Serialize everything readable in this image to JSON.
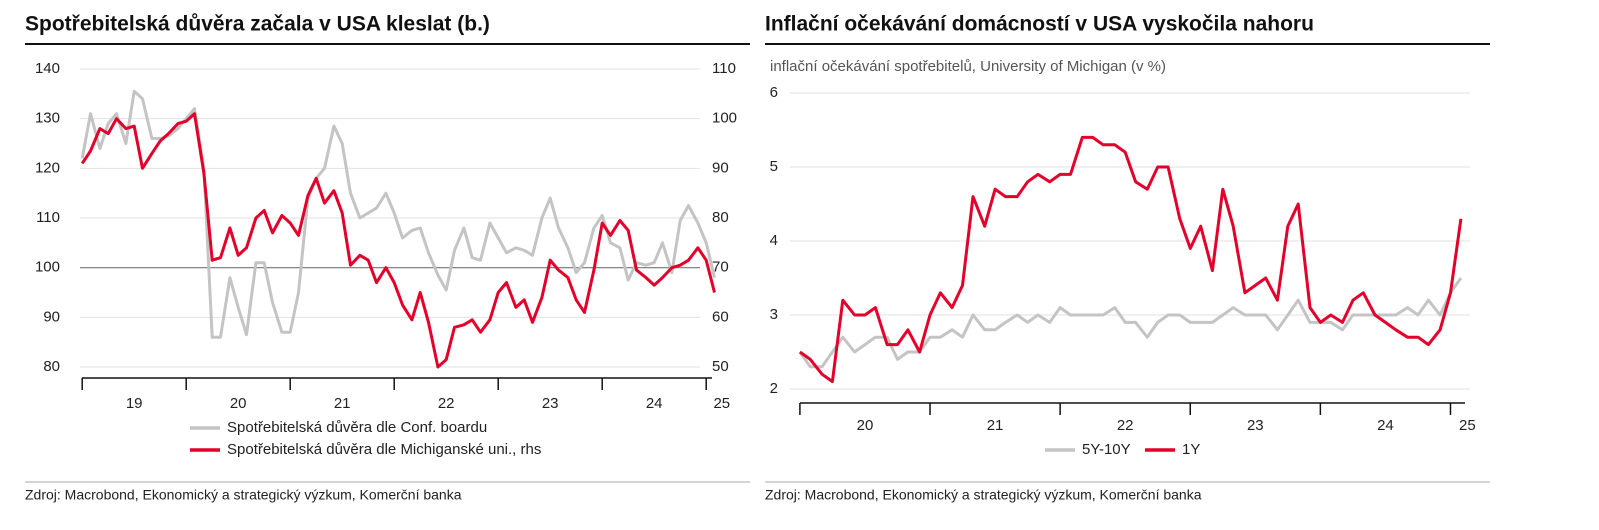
{
  "chart_data": [
    {
      "type": "line",
      "title": "Spotřebitelská důvěra začala v USA kleslat (b.)",
      "source": "Zdroj: Macrobond, Ekonomický a strategický výzkum, Komerční banka",
      "x": [
        2019.0,
        2019.08,
        2019.17,
        2019.25,
        2019.33,
        2019.42,
        2019.5,
        2019.58,
        2019.67,
        2019.75,
        2019.83,
        2019.92,
        2020.0,
        2020.08,
        2020.17,
        2020.25,
        2020.33,
        2020.42,
        2020.5,
        2020.58,
        2020.67,
        2020.75,
        2020.83,
        2020.92,
        2021.0,
        2021.08,
        2021.17,
        2021.25,
        2021.33,
        2021.42,
        2021.5,
        2021.58,
        2021.67,
        2021.75,
        2021.83,
        2021.92,
        2022.0,
        2022.08,
        2022.17,
        2022.25,
        2022.33,
        2022.42,
        2022.5,
        2022.58,
        2022.67,
        2022.75,
        2022.83,
        2022.92,
        2023.0,
        2023.08,
        2023.17,
        2023.25,
        2023.33,
        2023.42,
        2023.5,
        2023.58,
        2023.67,
        2023.75,
        2023.83,
        2023.92,
        2024.0,
        2024.08,
        2024.17,
        2024.25,
        2024.33,
        2024.42,
        2024.5,
        2024.58,
        2024.67,
        2024.75,
        2024.83,
        2024.92,
        2025.0,
        2025.08
      ],
      "series": [
        {
          "name": "Spotřebitelská důvěra dle Conf. boardu",
          "color": "#c4c4c4",
          "axis": "y",
          "values": [
            122,
            131,
            124,
            129,
            131,
            125,
            135.5,
            134,
            126,
            126,
            126.5,
            128,
            130,
            132,
            120,
            86,
            86,
            98,
            92,
            86.5,
            101,
            101,
            93,
            87,
            87,
            95,
            114,
            118,
            120,
            128.5,
            125,
            115,
            110,
            111,
            112,
            115,
            111,
            106,
            107.5,
            108,
            103,
            98.5,
            95.5,
            103.5,
            108,
            102,
            101.5,
            109,
            106,
            103,
            104,
            103.5,
            102.5,
            110,
            114,
            108,
            104,
            99,
            101,
            108,
            110.5,
            105,
            104,
            97.5,
            101,
            100.5,
            101,
            105,
            99,
            109.5,
            112.5,
            109,
            105,
            98
          ]
        },
        {
          "name": "Spotřebitelská důvěra dle Michiganské uni., rhs",
          "color": "#e3002b",
          "axis": "y2",
          "values": [
            91,
            93.5,
            98,
            97,
            100,
            98,
            98.5,
            90,
            93,
            95.5,
            97,
            99,
            99.5,
            101,
            89,
            71.5,
            72,
            78,
            72.5,
            74,
            80,
            81.5,
            77,
            80.5,
            79,
            76.5,
            84.5,
            88,
            83,
            85.5,
            81,
            70.5,
            72.5,
            71.5,
            67,
            70,
            67,
            62.5,
            59.5,
            65,
            59,
            50,
            51.5,
            58,
            58.5,
            59.5,
            57,
            59.5,
            65,
            67,
            62,
            63.5,
            59,
            64,
            71.5,
            69.5,
            68,
            63.5,
            61,
            69.5,
            79,
            76.5,
            79.5,
            77.5,
            69.5,
            68,
            66.5,
            68,
            70,
            70.5,
            71.5,
            74,
            71.5,
            65
          ]
        }
      ],
      "xlim": [
        2018.95,
        2025.2
      ],
      "xtick_marks": [
        2019,
        2020,
        2021,
        2022,
        2023,
        2024,
        2025
      ],
      "xticks": [
        {
          "value": 2019.5,
          "label": "19"
        },
        {
          "value": 2020.5,
          "label": "20"
        },
        {
          "value": 2021.5,
          "label": "21"
        },
        {
          "value": 2022.5,
          "label": "22"
        },
        {
          "value": 2023.5,
          "label": "23"
        },
        {
          "value": 2024.5,
          "label": "24"
        },
        {
          "value": 2025.15,
          "label": "25"
        }
      ],
      "ylim": [
        80,
        140
      ],
      "yticks": [
        80,
        90,
        100,
        110,
        120,
        130,
        140
      ],
      "y2lim": [
        50,
        110
      ],
      "y2ticks": [
        50,
        60,
        70,
        80,
        90,
        100,
        110
      ],
      "hline": 100,
      "grid": true,
      "legend": "bottom-left"
    },
    {
      "type": "line",
      "title": "Inflační očekávání domácností v USA vyskočila nahoru",
      "subtitle": "inflační očekávání spotřebitelů, University of Michigan (v %)",
      "source": "Zdroj: Macrobond, Ekonomický a strategický výzkum, Komerční banka",
      "x": [
        2020.0,
        2020.08,
        2020.17,
        2020.25,
        2020.33,
        2020.42,
        2020.5,
        2020.58,
        2020.67,
        2020.75,
        2020.83,
        2020.92,
        2021.0,
        2021.08,
        2021.17,
        2021.25,
        2021.33,
        2021.42,
        2021.5,
        2021.58,
        2021.67,
        2021.75,
        2021.83,
        2021.92,
        2022.0,
        2022.08,
        2022.17,
        2022.25,
        2022.33,
        2022.42,
        2022.5,
        2022.58,
        2022.67,
        2022.75,
        2022.83,
        2022.92,
        2023.0,
        2023.08,
        2023.17,
        2023.25,
        2023.33,
        2023.42,
        2023.5,
        2023.58,
        2023.67,
        2023.75,
        2023.83,
        2023.92,
        2024.0,
        2024.08,
        2024.17,
        2024.25,
        2024.33,
        2024.42,
        2024.5,
        2024.58,
        2024.67,
        2024.75,
        2024.83,
        2024.92,
        2025.0,
        2025.08
      ],
      "series": [
        {
          "name": "5Y-10Y",
          "color": "#c4c4c4",
          "values": [
            2.5,
            2.3,
            2.3,
            2.5,
            2.7,
            2.5,
            2.6,
            2.7,
            2.7,
            2.4,
            2.5,
            2.5,
            2.7,
            2.7,
            2.8,
            2.7,
            3.0,
            2.8,
            2.8,
            2.9,
            3.0,
            2.9,
            3.0,
            2.9,
            3.1,
            3.0,
            3.0,
            3.0,
            3.0,
            3.1,
            2.9,
            2.9,
            2.7,
            2.9,
            3.0,
            3.0,
            2.9,
            2.9,
            2.9,
            3.0,
            3.1,
            3.0,
            3.0,
            3.0,
            2.8,
            3.0,
            3.2,
            2.9,
            2.9,
            2.9,
            2.8,
            3.0,
            3.0,
            3.0,
            3.0,
            3.0,
            3.1,
            3.0,
            3.2,
            3.0,
            3.3,
            3.5
          ]
        },
        {
          "name": "1Y",
          "color": "#e3002b",
          "values": [
            2.5,
            2.4,
            2.2,
            2.1,
            3.2,
            3.0,
            3.0,
            3.1,
            2.6,
            2.6,
            2.8,
            2.5,
            3.0,
            3.3,
            3.1,
            3.4,
            4.6,
            4.2,
            4.7,
            4.6,
            4.6,
            4.8,
            4.9,
            4.8,
            4.9,
            4.9,
            5.4,
            5.4,
            5.3,
            5.3,
            5.2,
            4.8,
            4.7,
            5.0,
            5.0,
            4.3,
            3.9,
            4.2,
            3.6,
            4.7,
            4.2,
            3.3,
            3.4,
            3.5,
            3.2,
            4.2,
            4.5,
            3.1,
            2.9,
            3.0,
            2.9,
            3.2,
            3.3,
            3.0,
            2.9,
            2.8,
            2.7,
            2.7,
            2.6,
            2.8,
            3.3,
            4.3
          ]
        }
      ],
      "xlim": [
        2019.97,
        2025.15
      ],
      "xtick_marks": [
        2020,
        2021,
        2022,
        2023,
        2024,
        2025
      ],
      "xticks": [
        {
          "value": 2020.5,
          "label": "20"
        },
        {
          "value": 2021.5,
          "label": "21"
        },
        {
          "value": 2022.5,
          "label": "22"
        },
        {
          "value": 2023.5,
          "label": "23"
        },
        {
          "value": 2024.5,
          "label": "24"
        },
        {
          "value": 2025.13,
          "label": "25"
        }
      ],
      "ylim": [
        2,
        6
      ],
      "yticks": [
        2,
        3,
        4,
        5,
        6
      ],
      "grid": true,
      "legend": "bottom-center"
    }
  ]
}
